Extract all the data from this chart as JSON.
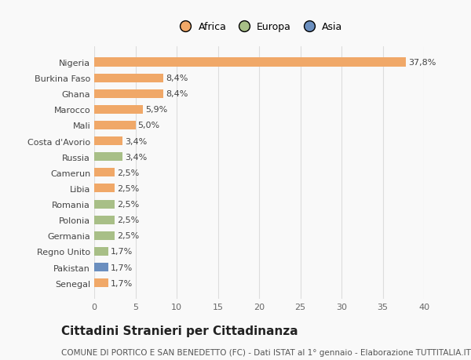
{
  "categories": [
    "Nigeria",
    "Burkina Faso",
    "Ghana",
    "Marocco",
    "Mali",
    "Costa d'Avorio",
    "Russia",
    "Camerun",
    "Libia",
    "Romania",
    "Polonia",
    "Germania",
    "Regno Unito",
    "Pakistan",
    "Senegal"
  ],
  "values": [
    37.8,
    8.4,
    8.4,
    5.9,
    5.0,
    3.4,
    3.4,
    2.5,
    2.5,
    2.5,
    2.5,
    2.5,
    1.7,
    1.7,
    1.7
  ],
  "labels": [
    "37,8%",
    "8,4%",
    "8,4%",
    "5,9%",
    "5,0%",
    "3,4%",
    "3,4%",
    "2,5%",
    "2,5%",
    "2,5%",
    "2,5%",
    "2,5%",
    "1,7%",
    "1,7%",
    "1,7%"
  ],
  "colors": [
    "#f0a868",
    "#f0a868",
    "#f0a868",
    "#f0a868",
    "#f0a868",
    "#f0a868",
    "#a8bf87",
    "#f0a868",
    "#f0a868",
    "#a8bf87",
    "#a8bf87",
    "#a8bf87",
    "#a8bf87",
    "#6b8fbf",
    "#f0a868"
  ],
  "legend_labels": [
    "Africa",
    "Europa",
    "Asia"
  ],
  "legend_colors": [
    "#f0a868",
    "#a8bf87",
    "#6b8fbf"
  ],
  "title": "Cittadini Stranieri per Cittadinanza",
  "subtitle": "COMUNE DI PORTICO E SAN BENEDETTO (FC) - Dati ISTAT al 1° gennaio - Elaborazione TUTTITALIA.IT",
  "xlim": [
    0,
    40
  ],
  "xticks": [
    0,
    5,
    10,
    15,
    20,
    25,
    30,
    35,
    40
  ],
  "bg_color": "#f9f9f9",
  "bar_height": 0.55,
  "label_fontsize": 8,
  "title_fontsize": 11,
  "subtitle_fontsize": 7.5,
  "tick_fontsize": 8,
  "legend_fontsize": 9
}
